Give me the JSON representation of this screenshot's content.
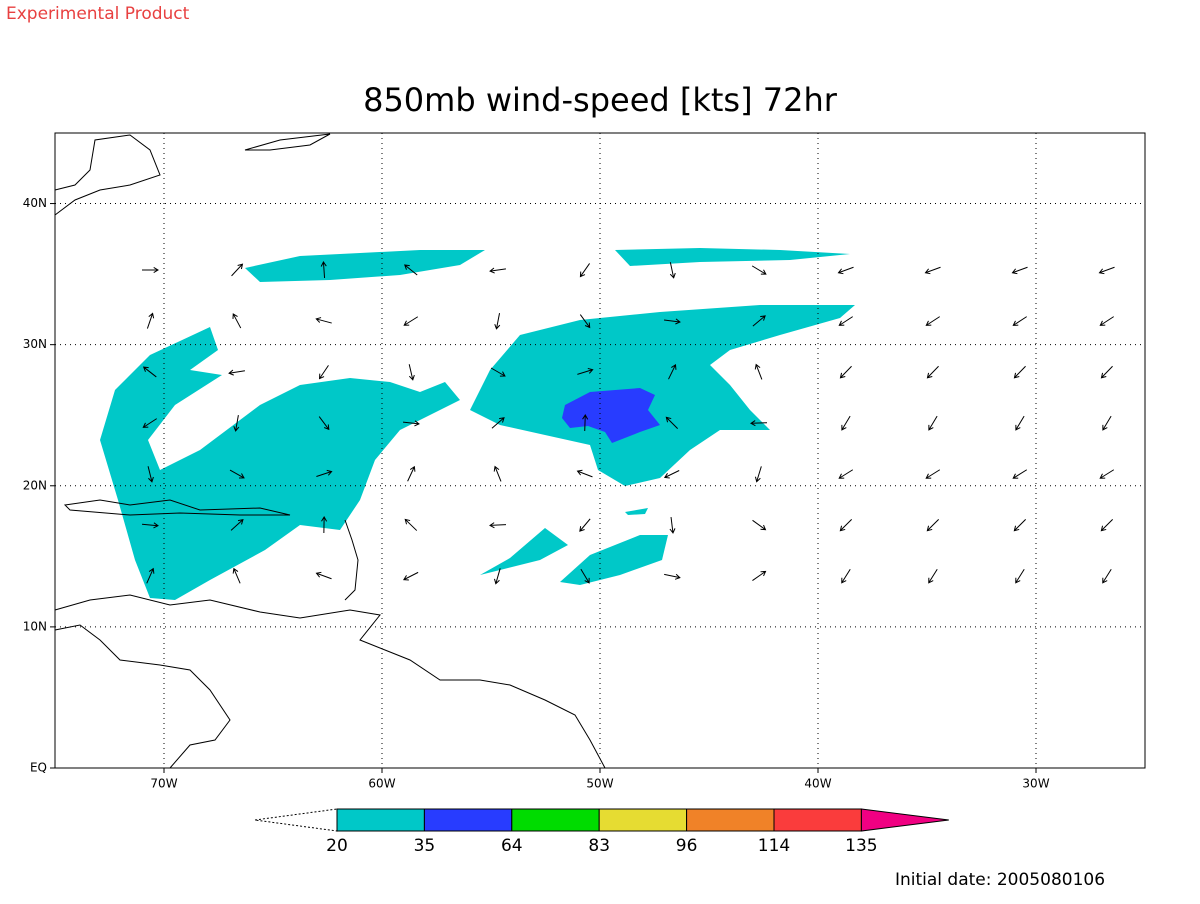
{
  "header": {
    "label": "Experimental Product"
  },
  "title": "850mb wind-speed [kts] 72hr",
  "map": {
    "xlim": [
      -75,
      -25
    ],
    "ylim": [
      0,
      45
    ],
    "xticks": [
      {
        "value": -70,
        "label": "70W"
      },
      {
        "value": -60,
        "label": "60W"
      },
      {
        "value": -50,
        "label": "50W"
      },
      {
        "value": -40,
        "label": "40W"
      },
      {
        "value": -30,
        "label": "30W"
      }
    ],
    "yticks": [
      {
        "value": 0,
        "label": "EQ"
      },
      {
        "value": 10,
        "label": "10N"
      },
      {
        "value": 20,
        "label": "20N"
      },
      {
        "value": 30,
        "label": "30N"
      },
      {
        "value": 40,
        "label": "40N"
      }
    ],
    "grid": true
  },
  "colorbar": {
    "levels": [
      20,
      35,
      64,
      83,
      96,
      114,
      135
    ],
    "colors": [
      "#00c8c8",
      "#283cff",
      "#00dc00",
      "#e6dc32",
      "#f08228",
      "#fa3c3c",
      "#f00082"
    ]
  },
  "footer": {
    "label": "Initial date: 2005080106"
  }
}
